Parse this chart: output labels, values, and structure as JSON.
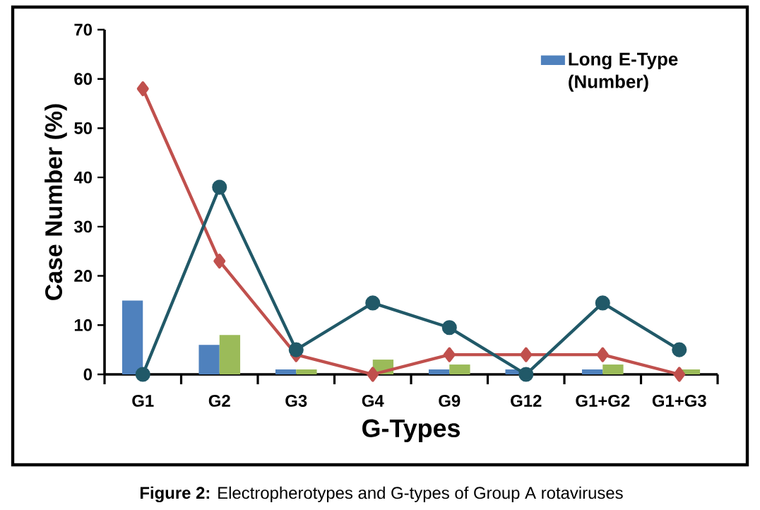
{
  "chart_data": {
    "type": "bar",
    "xlabel": "G-Types",
    "ylabel": "Case Number (%)",
    "categories": [
      "G1",
      "G2",
      "G3",
      "G4",
      "G9",
      "G12",
      "G1+G2",
      "G1+G3"
    ],
    "series": [
      {
        "name": "Long E-Type (Number)",
        "color": "#4f81bd",
        "values": [
          15,
          6,
          1,
          0,
          1,
          1,
          1,
          0
        ]
      },
      {
        "color": "#9bbb59",
        "values": [
          0,
          8,
          1,
          3,
          2,
          0,
          2,
          1
        ]
      },
      {
        "type": "line",
        "marker": "diamond",
        "color": "#c0504d",
        "values": [
          58,
          23,
          4,
          0,
          4,
          4,
          4,
          0
        ]
      },
      {
        "type": "line",
        "marker": "circle",
        "color": "#215968",
        "values": [
          0,
          38,
          5,
          14.5,
          9.5,
          0,
          14.5,
          5
        ]
      }
    ],
    "ylim": [
      0,
      70
    ],
    "yticks": [
      0,
      10,
      20,
      30,
      40,
      50,
      60,
      70
    ],
    "legend": "top right",
    "annotations": [
      "**Figure 2:** Electropherotypes and G-types of Group A rotaviruses"
    ]
  }
}
